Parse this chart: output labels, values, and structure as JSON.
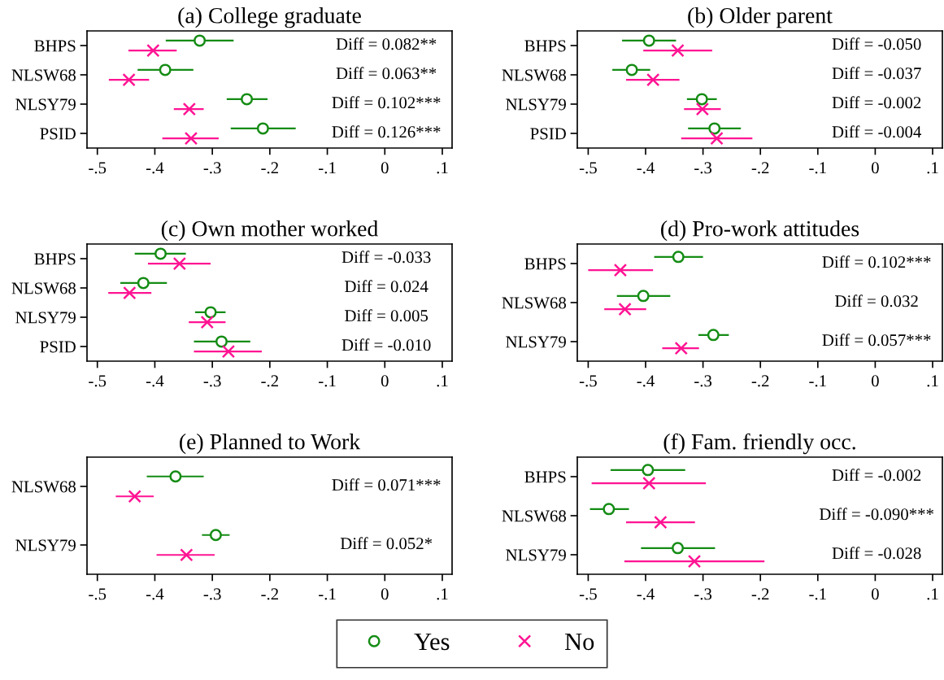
{
  "chart_data": [
    {
      "type": "scatter",
      "orientation": "horizontal",
      "title": "(a) College graduate",
      "categories": [
        "BHPS",
        "NLSW68",
        "NLSY79",
        "PSID"
      ],
      "xlim": [
        -0.518,
        0.117
      ],
      "xticks": [
        {
          "value": -0.5,
          "label": "-.5"
        },
        {
          "value": -0.4,
          "label": "-.4"
        },
        {
          "value": -0.3,
          "label": "-.3"
        },
        {
          "value": -0.2,
          "label": "-.2"
        },
        {
          "value": -0.1,
          "label": "-.1"
        },
        0,
        {
          "value": 0.1,
          "label": ".1"
        }
      ],
      "series": [
        {
          "name": "Yes",
          "color": "#158c15",
          "marker": "circle",
          "values": [
            -0.322,
            -0.382,
            -0.24,
            -0.212
          ],
          "errors": [
            [
              -0.381,
              -0.263
            ],
            [
              -0.43,
              -0.333
            ],
            [
              -0.275,
              -0.204
            ],
            [
              -0.268,
              -0.155
            ]
          ]
        },
        {
          "name": "No",
          "color": "#ff1493",
          "marker": "cross",
          "values": [
            -0.403,
            -0.445,
            -0.34,
            -0.337
          ],
          "errors": [
            [
              -0.446,
              -0.362
            ],
            [
              -0.48,
              -0.41
            ],
            [
              -0.367,
              -0.315
            ],
            [
              -0.387,
              -0.289
            ]
          ]
        }
      ],
      "annotations": [
        "Diff = 0.082**",
        "Diff = 0.063**",
        "Diff = 0.102***",
        "Diff = 0.126***"
      ],
      "legend": "bottom"
    },
    {
      "type": "scatter",
      "orientation": "horizontal",
      "title": "(b) Older parent",
      "categories": [
        "BHPS",
        "NLSW68",
        "NLSY79",
        "PSID"
      ],
      "xlim": [
        -0.519,
        0.117
      ],
      "xticks": [
        {
          "value": -0.5,
          "label": "-.5"
        },
        {
          "value": -0.4,
          "label": "-.4"
        },
        {
          "value": -0.3,
          "label": "-.3"
        },
        {
          "value": -0.2,
          "label": "-.2"
        },
        {
          "value": -0.1,
          "label": "-.1"
        },
        0,
        {
          "value": 0.1,
          "label": ".1"
        }
      ],
      "series": [
        {
          "color": "#158c15",
          "marker": "circle",
          "values": [
            -0.394,
            -0.424,
            -0.302,
            -0.28
          ],
          "errors": [
            [
              -0.441,
              -0.347
            ],
            [
              -0.458,
              -0.392
            ],
            [
              -0.328,
              -0.276
            ],
            [
              -0.326,
              -0.234
            ]
          ]
        },
        {
          "color": "#ff1493",
          "marker": "cross",
          "values": [
            -0.344,
            -0.387,
            -0.301,
            -0.276
          ],
          "errors": [
            [
              -0.404,
              -0.284
            ],
            [
              -0.434,
              -0.341
            ],
            [
              -0.333,
              -0.269
            ],
            [
              -0.338,
              -0.214
            ]
          ]
        }
      ],
      "annotations": [
        "Diff = -0.050",
        "Diff = -0.037",
        "Diff = -0.002",
        "Diff = -0.004"
      ]
    },
    {
      "type": "scatter",
      "orientation": "horizontal",
      "title": "(c) Own mother worked",
      "categories": [
        "BHPS",
        "NLSW68",
        "NLSY79",
        "PSID"
      ],
      "xlim": [
        -0.518,
        0.117
      ],
      "xticks": [
        {
          "value": -0.5,
          "label": "-.5"
        },
        {
          "value": -0.4,
          "label": "-.4"
        },
        {
          "value": -0.3,
          "label": "-.3"
        },
        {
          "value": -0.2,
          "label": "-.2"
        },
        {
          "value": -0.1,
          "label": "-.1"
        },
        0,
        {
          "value": 0.1,
          "label": ".1"
        }
      ],
      "series": [
        {
          "color": "#158c15",
          "marker": "circle",
          "values": [
            -0.39,
            -0.42,
            -0.303,
            -0.284
          ],
          "errors": [
            [
              -0.435,
              -0.346
            ],
            [
              -0.46,
              -0.379
            ],
            [
              -0.33,
              -0.277
            ],
            [
              -0.332,
              -0.234
            ]
          ]
        },
        {
          "color": "#ff1493",
          "marker": "cross",
          "values": [
            -0.357,
            -0.444,
            -0.309,
            -0.272
          ],
          "errors": [
            [
              -0.412,
              -0.303
            ],
            [
              -0.481,
              -0.406
            ],
            [
              -0.341,
              -0.277
            ],
            [
              -0.332,
              -0.214
            ]
          ]
        }
      ],
      "annotations": [
        "Diff = -0.033",
        "Diff = 0.024",
        "Diff = 0.005",
        "Diff = -0.010"
      ]
    },
    {
      "type": "scatter",
      "orientation": "horizontal",
      "title": "(d) Pro-work attitudes",
      "categories": [
        "BHPS",
        "NLSW68",
        "NLSY79"
      ],
      "xlim": [
        -0.519,
        0.117
      ],
      "xticks": [
        {
          "value": -0.5,
          "label": "-.5"
        },
        {
          "value": -0.4,
          "label": "-.4"
        },
        {
          "value": -0.3,
          "label": "-.3"
        },
        {
          "value": -0.2,
          "label": "-.2"
        },
        {
          "value": -0.1,
          "label": "-.1"
        },
        0,
        {
          "value": 0.1,
          "label": ".1"
        }
      ],
      "series": [
        {
          "color": "#158c15",
          "marker": "circle",
          "values": [
            -0.343,
            -0.404,
            -0.282
          ],
          "errors": [
            [
              -0.385,
              -0.3
            ],
            [
              -0.45,
              -0.357
            ],
            [
              -0.308,
              -0.255
            ]
          ]
        },
        {
          "color": "#ff1493",
          "marker": "cross",
          "values": [
            -0.444,
            -0.436,
            -0.338
          ],
          "errors": [
            [
              -0.5,
              -0.387
            ],
            [
              -0.472,
              -0.399
            ],
            [
              -0.371,
              -0.307
            ]
          ]
        }
      ],
      "annotations": [
        "Diff = 0.102***",
        "Diff = 0.032",
        "Diff = 0.057***"
      ]
    },
    {
      "type": "scatter",
      "orientation": "horizontal",
      "title": "(e) Planned to Work",
      "categories": [
        "NLSW68",
        "NLSY79"
      ],
      "xlim": [
        -0.518,
        0.117
      ],
      "xticks": [
        {
          "value": -0.5,
          "label": "-.5"
        },
        {
          "value": -0.4,
          "label": "-.4"
        },
        {
          "value": -0.3,
          "label": "-.3"
        },
        {
          "value": -0.2,
          "label": "-.2"
        },
        {
          "value": -0.1,
          "label": "-.1"
        },
        0,
        {
          "value": 0.1,
          "label": ".1"
        }
      ],
      "series": [
        {
          "color": "#158c15",
          "marker": "circle",
          "values": [
            -0.364,
            -0.294
          ],
          "errors": [
            [
              -0.414,
              -0.315
            ],
            [
              -0.318,
              -0.27
            ]
          ]
        },
        {
          "color": "#ff1493",
          "marker": "cross",
          "values": [
            -0.435,
            -0.345
          ],
          "errors": [
            [
              -0.468,
              -0.402
            ],
            [
              -0.397,
              -0.296
            ]
          ]
        }
      ],
      "annotations": [
        "Diff = 0.071***",
        "Diff = 0.052*"
      ]
    },
    {
      "type": "scatter",
      "orientation": "horizontal",
      "title": "(f) Fam. friendly occ.",
      "categories": [
        "BHPS",
        "NLSW68",
        "NLSY79"
      ],
      "xlim": [
        -0.519,
        0.117
      ],
      "xticks": [
        {
          "value": -0.5,
          "label": "-.5"
        },
        {
          "value": -0.4,
          "label": "-.4"
        },
        {
          "value": -0.3,
          "label": "-.3"
        },
        {
          "value": -0.2,
          "label": "-.2"
        },
        {
          "value": -0.1,
          "label": "-.1"
        },
        0,
        {
          "value": 0.1,
          "label": ".1"
        }
      ],
      "series": [
        {
          "color": "#158c15",
          "marker": "circle",
          "values": [
            -0.396,
            -0.464,
            -0.344
          ],
          "errors": [
            [
              -0.461,
              -0.331
            ],
            [
              -0.497,
              -0.429
            ],
            [
              -0.408,
              -0.279
            ]
          ]
        },
        {
          "color": "#ff1493",
          "marker": "cross",
          "values": [
            -0.394,
            -0.374,
            -0.315
          ],
          "errors": [
            [
              -0.494,
              -0.295
            ],
            [
              -0.434,
              -0.314
            ],
            [
              -0.437,
              -0.193
            ]
          ]
        }
      ],
      "annotations": [
        "Diff = -0.002",
        "Diff = -0.090***",
        "Diff = -0.028"
      ]
    }
  ]
}
